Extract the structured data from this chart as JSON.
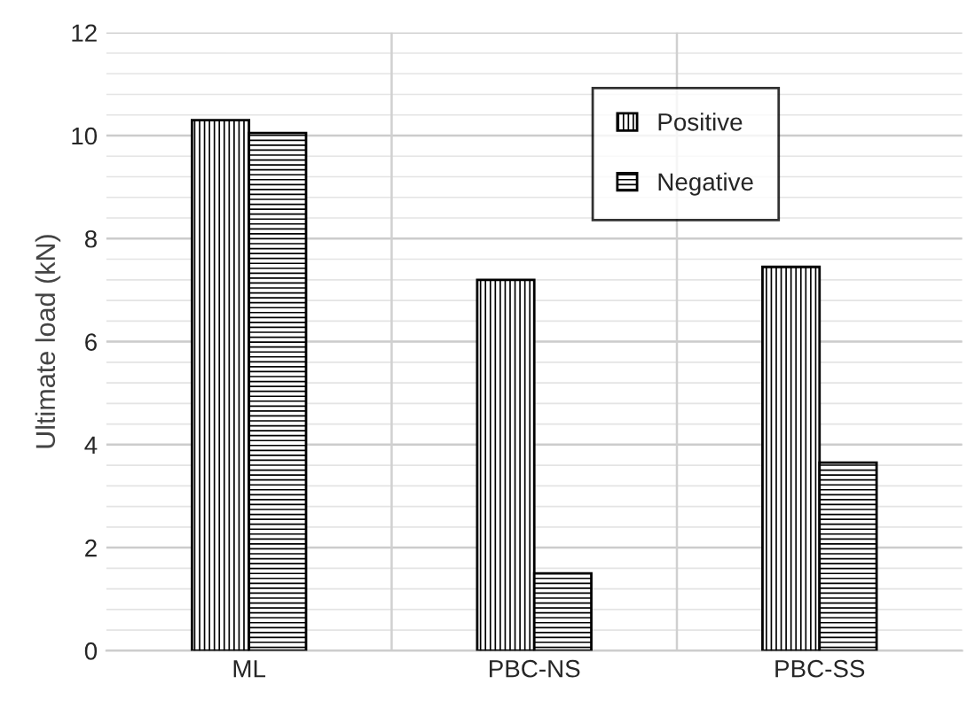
{
  "chart_data": {
    "type": "bar",
    "ylabel": "Ultimate load (kN)",
    "categories": [
      "ML",
      "PBC-NS",
      "PBC-SS"
    ],
    "series": [
      {
        "name": "Positive",
        "color": "#000000",
        "values": [
          10.3,
          7.2,
          7.45
        ]
      },
      {
        "name": "Negative",
        "color": "#000000",
        "values": [
          10.05,
          1.5,
          3.65
        ]
      }
    ],
    "ylim": [
      0,
      12
    ],
    "yticks": [
      0,
      2,
      4,
      6,
      8,
      10,
      12
    ],
    "grid": true,
    "legend": "top right"
  }
}
